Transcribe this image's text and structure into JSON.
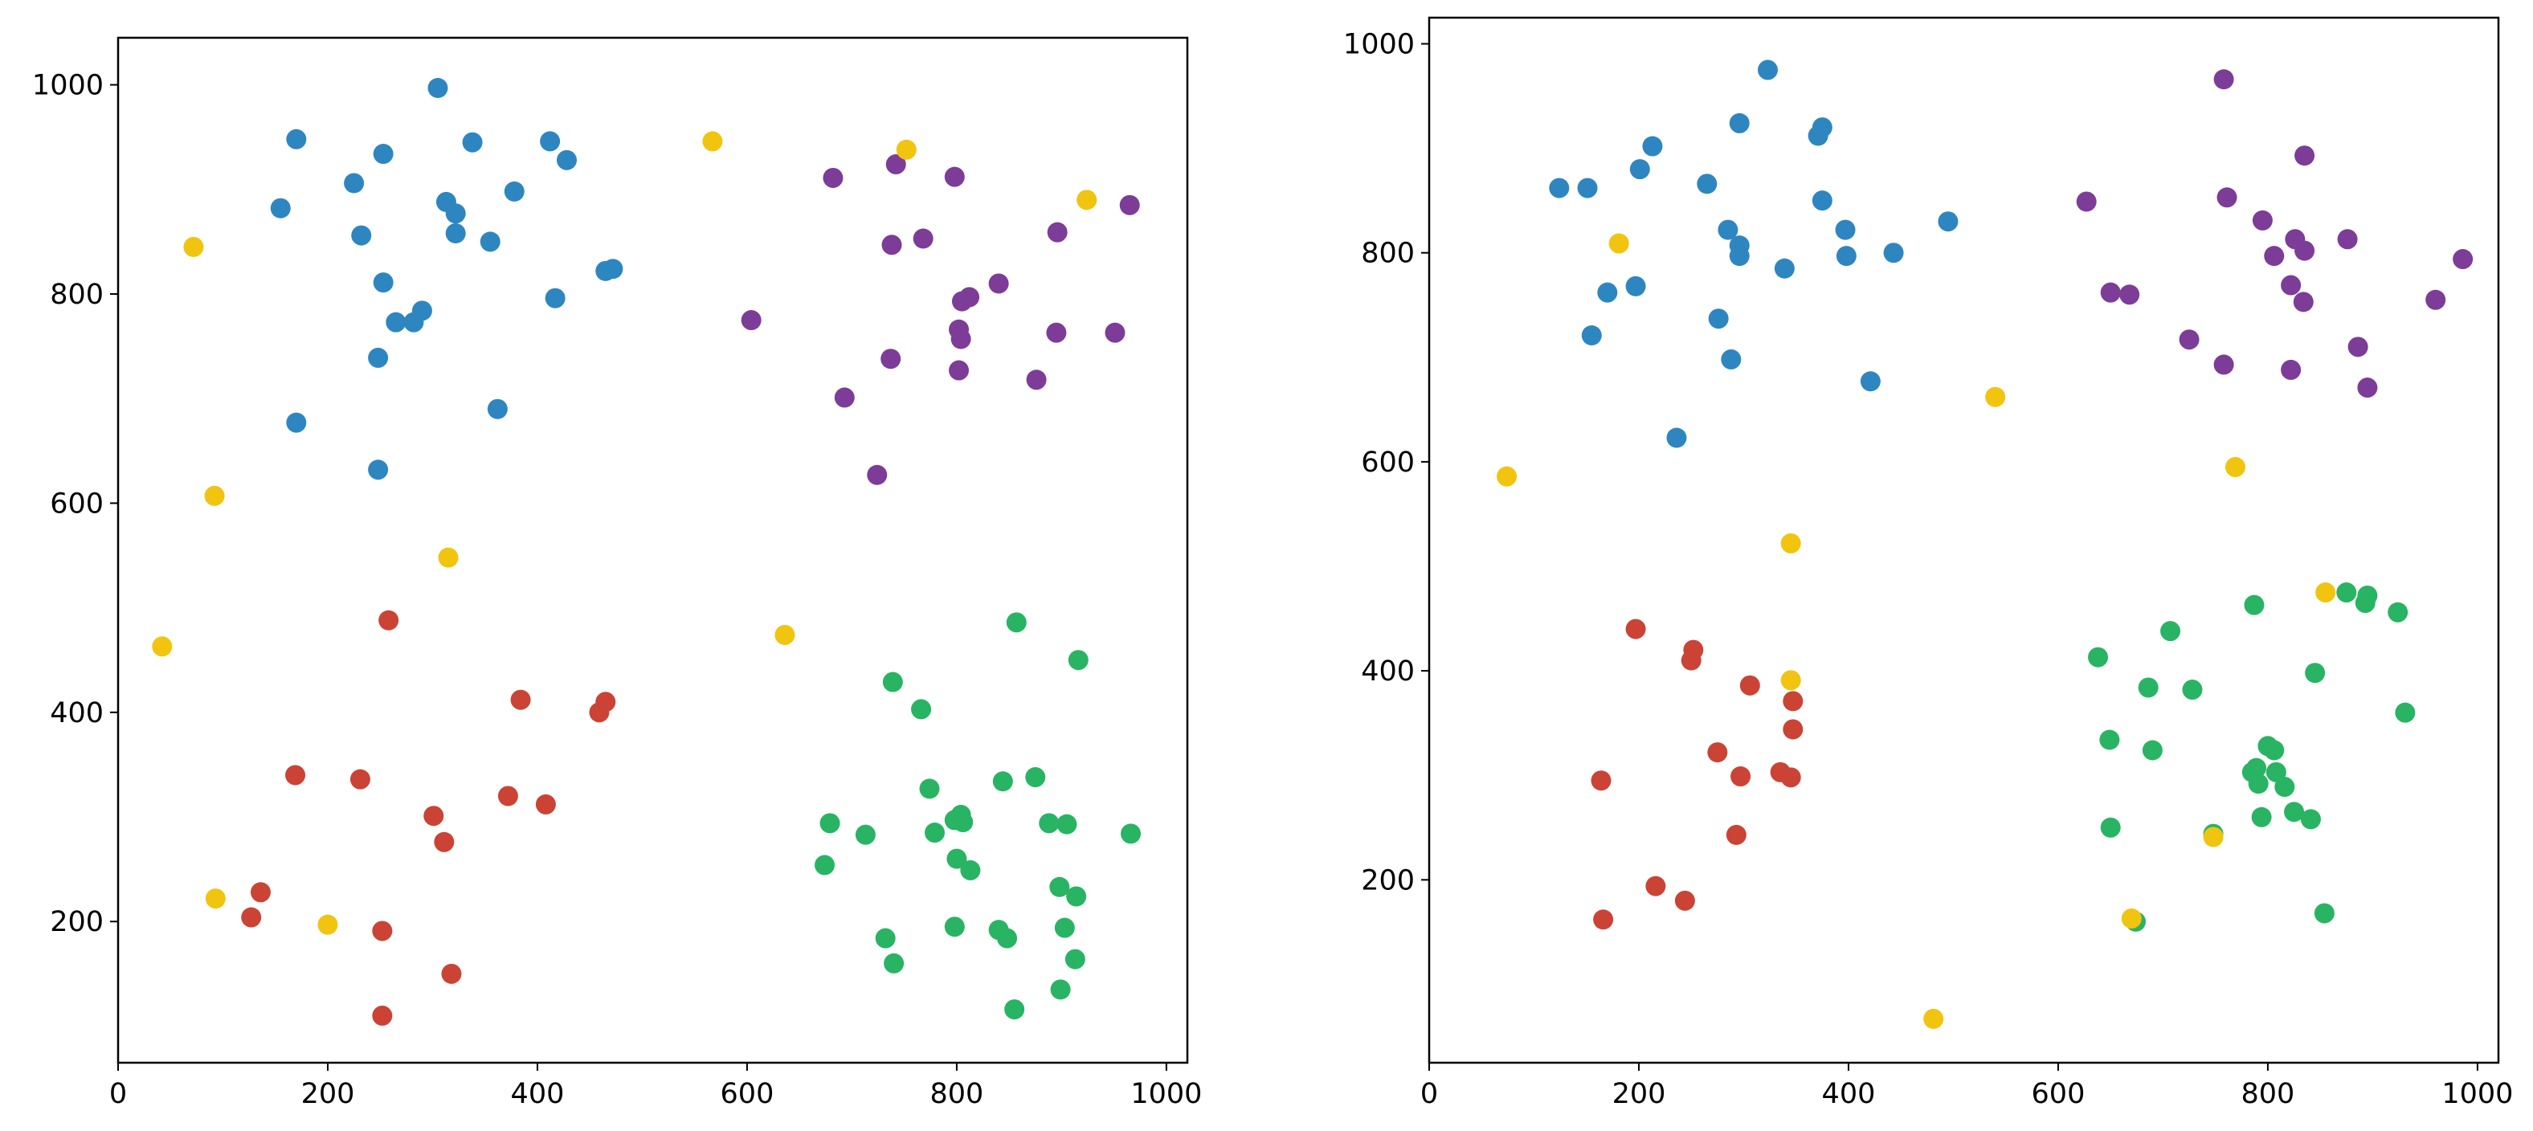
{
  "colors": {
    "blue": "#2e86c1",
    "purple": "#7d3c98",
    "red": "#cb4335",
    "green": "#28b463",
    "yellow": "#f1c40f"
  },
  "chart_data": [
    {
      "type": "scatter",
      "title": "",
      "xlabel": "",
      "ylabel": "",
      "xlim": [
        0,
        1020
      ],
      "ylim": [
        65,
        1045
      ],
      "xticks": [
        "0",
        "200",
        "400",
        "600",
        "800",
        "1000"
      ],
      "yticks": [
        "200",
        "400",
        "600",
        "800",
        "1000"
      ],
      "grid": false,
      "legend": "none",
      "series": [
        {
          "color": "blue",
          "points": [
            [
              305,
              997
            ],
            [
              170,
              948
            ],
            [
              338,
              945
            ],
            [
              412,
              946
            ],
            [
              253,
              934
            ],
            [
              428,
              928
            ],
            [
              225,
              906
            ],
            [
              378,
              898
            ],
            [
              313,
              888
            ],
            [
              155,
              882
            ],
            [
              322,
              877
            ],
            [
              232,
              856
            ],
            [
              322,
              858
            ],
            [
              355,
              850
            ],
            [
              472,
              824
            ],
            [
              465,
              822
            ],
            [
              253,
              811
            ],
            [
              417,
              796
            ],
            [
              290,
              784
            ],
            [
              265,
              773
            ],
            [
              282,
              773
            ],
            [
              248,
              739
            ],
            [
              362,
              690
            ],
            [
              170,
              677
            ],
            [
              248,
              632
            ]
          ]
        },
        {
          "color": "purple",
          "points": [
            [
              682,
              911
            ],
            [
              742,
              924
            ],
            [
              798,
              912
            ],
            [
              965,
              885
            ],
            [
              896,
              859
            ],
            [
              738,
              847
            ],
            [
              768,
              853
            ],
            [
              840,
              810
            ],
            [
              812,
              797
            ],
            [
              805,
              793
            ],
            [
              604,
              775
            ],
            [
              802,
              766
            ],
            [
              804,
              757
            ],
            [
              895,
              763
            ],
            [
              951,
              763
            ],
            [
              737,
              738
            ],
            [
              802,
              727
            ],
            [
              876,
              718
            ],
            [
              693,
              701
            ],
            [
              724,
              627
            ]
          ]
        },
        {
          "color": "red",
          "points": [
            [
              258,
              488
            ],
            [
              384,
              412
            ],
            [
              465,
              410
            ],
            [
              459,
              400
            ],
            [
              169,
              340
            ],
            [
              231,
              336
            ],
            [
              372,
              320
            ],
            [
              408,
              312
            ],
            [
              301,
              301
            ],
            [
              311,
              276
            ],
            [
              136,
              228
            ],
            [
              127,
              204
            ],
            [
              252,
              191
            ],
            [
              318,
              150
            ],
            [
              252,
              110
            ]
          ]
        },
        {
          "color": "green",
          "points": [
            [
              857,
              486
            ],
            [
              916,
              450
            ],
            [
              739,
              429
            ],
            [
              766,
              403
            ],
            [
              875,
              338
            ],
            [
              844,
              334
            ],
            [
              774,
              327
            ],
            [
              679,
              294
            ],
            [
              804,
              302
            ],
            [
              798,
              297
            ],
            [
              806,
              295
            ],
            [
              888,
              294
            ],
            [
              905,
              293
            ],
            [
              779,
              285
            ],
            [
              966,
              284
            ],
            [
              713,
              283
            ],
            [
              800,
              260
            ],
            [
              813,
              249
            ],
            [
              674,
              254
            ],
            [
              898,
              233
            ],
            [
              914,
              224
            ],
            [
              840,
              192
            ],
            [
              798,
              195
            ],
            [
              903,
              194
            ],
            [
              848,
              184
            ],
            [
              732,
              184
            ],
            [
              913,
              164
            ],
            [
              740,
              160
            ],
            [
              899,
              135
            ],
            [
              855,
              116
            ]
          ]
        },
        {
          "color": "yellow",
          "points": [
            [
              567,
              946
            ],
            [
              752,
              938
            ],
            [
              924,
              890
            ],
            [
              72,
              845
            ],
            [
              92,
              607
            ],
            [
              315,
              548
            ],
            [
              42,
              463
            ],
            [
              636,
              474
            ],
            [
              93,
              222
            ],
            [
              200,
              197
            ]
          ]
        }
      ]
    },
    {
      "type": "scatter",
      "title": "",
      "xlabel": "",
      "ylabel": "",
      "xlim": [
        0,
        1020
      ],
      "ylim": [
        25,
        1025
      ],
      "xticks": [
        "0",
        "200",
        "400",
        "600",
        "800",
        "1000"
      ],
      "yticks": [
        "200",
        "400",
        "600",
        "800",
        "1000"
      ],
      "grid": false,
      "legend": "none",
      "series": [
        {
          "color": "blue",
          "points": [
            [
              323,
              975
            ],
            [
              296,
              924
            ],
            [
              375,
              920
            ],
            [
              371,
              912
            ],
            [
              213,
              902
            ],
            [
              201,
              880
            ],
            [
              265,
              866
            ],
            [
              124,
              862
            ],
            [
              151,
              862
            ],
            [
              375,
              850
            ],
            [
              495,
              830
            ],
            [
              285,
              822
            ],
            [
              397,
              822
            ],
            [
              296,
              807
            ],
            [
              296,
              797
            ],
            [
              398,
              797
            ],
            [
              443,
              800
            ],
            [
              339,
              785
            ],
            [
              197,
              768
            ],
            [
              170,
              762
            ],
            [
              276,
              737
            ],
            [
              155,
              721
            ],
            [
              288,
              698
            ],
            [
              421,
              677
            ],
            [
              236,
              623
            ]
          ]
        },
        {
          "color": "purple",
          "points": [
            [
              758,
              966
            ],
            [
              835,
              893
            ],
            [
              627,
              849
            ],
            [
              761,
              853
            ],
            [
              795,
              831
            ],
            [
              876,
              813
            ],
            [
              826,
              813
            ],
            [
              806,
              797
            ],
            [
              835,
              802
            ],
            [
              986,
              794
            ],
            [
              822,
              769
            ],
            [
              834,
              753
            ],
            [
              650,
              762
            ],
            [
              668,
              760
            ],
            [
              960,
              755
            ],
            [
              886,
              710
            ],
            [
              725,
              717
            ],
            [
              758,
              693
            ],
            [
              822,
              688
            ],
            [
              895,
              671
            ]
          ]
        },
        {
          "color": "red",
          "points": [
            [
              197,
              440
            ],
            [
              252,
              420
            ],
            [
              250,
              410
            ],
            [
              306,
              386
            ],
            [
              347,
              371
            ],
            [
              347,
              344
            ],
            [
              275,
              322
            ],
            [
              335,
              303
            ],
            [
              297,
              299
            ],
            [
              345,
              298
            ],
            [
              164,
              295
            ],
            [
              293,
              243
            ],
            [
              216,
              194
            ],
            [
              244,
              180
            ],
            [
              166,
              162
            ]
          ]
        },
        {
          "color": "green",
          "points": [
            [
              875,
              475
            ],
            [
              895,
              472
            ],
            [
              893,
              465
            ],
            [
              787,
              463
            ],
            [
              924,
              456
            ],
            [
              707,
              438
            ],
            [
              638,
              413
            ],
            [
              845,
              398
            ],
            [
              931,
              360
            ],
            [
              686,
              384
            ],
            [
              728,
              382
            ],
            [
              649,
              334
            ],
            [
              800,
              328
            ],
            [
              806,
              324
            ],
            [
              690,
              324
            ],
            [
              789,
              307
            ],
            [
              785,
              303
            ],
            [
              808,
              303
            ],
            [
              791,
              292
            ],
            [
              816,
              289
            ],
            [
              825,
              265
            ],
            [
              794,
              260
            ],
            [
              841,
              258
            ],
            [
              650,
              250
            ],
            [
              748,
              244
            ],
            [
              854,
              168
            ],
            [
              674,
              160
            ]
          ]
        },
        {
          "color": "yellow",
          "points": [
            [
              181,
              809
            ],
            [
              540,
              662
            ],
            [
              74,
              586
            ],
            [
              769,
              595
            ],
            [
              345,
              522
            ],
            [
              855,
              475
            ],
            [
              345,
              391
            ],
            [
              748,
              241
            ],
            [
              670,
              163
            ],
            [
              481,
              67
            ]
          ]
        }
      ]
    }
  ]
}
